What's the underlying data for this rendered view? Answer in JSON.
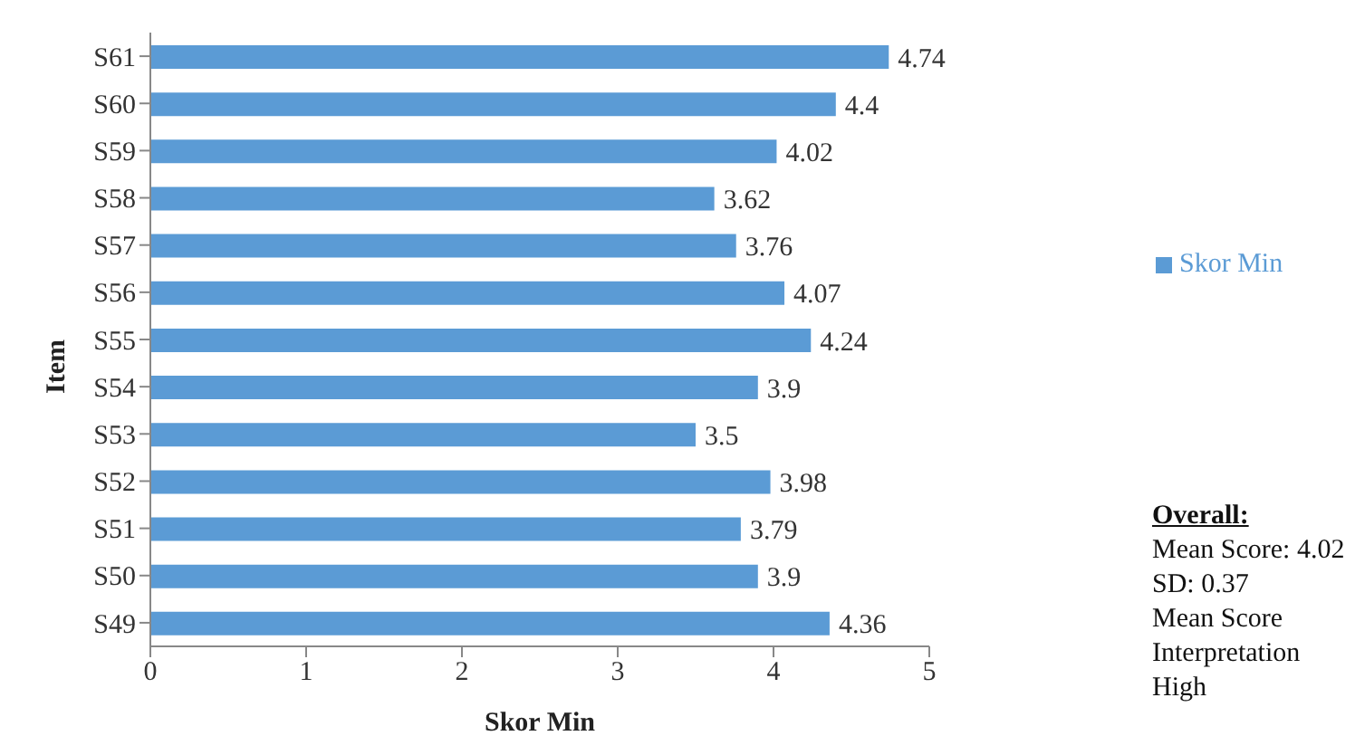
{
  "chart_data": {
    "type": "bar",
    "orientation": "horizontal",
    "xlabel": "Skor Min",
    "ylabel": "Item",
    "categories": [
      "S61",
      "S60",
      "S59",
      "S58",
      "S57",
      "S56",
      "S55",
      "S54",
      "S53",
      "S52",
      "S51",
      "S50",
      "S49"
    ],
    "series": [
      {
        "name": "Skor Min",
        "color": "#5b9bd5",
        "values": [
          4.74,
          4.4,
          4.02,
          3.62,
          3.76,
          4.07,
          4.24,
          3.9,
          3.5,
          3.98,
          3.79,
          3.9,
          4.36
        ]
      }
    ],
    "xlim": [
      0,
      5
    ],
    "xticks": [
      0,
      1,
      2,
      3,
      4,
      5
    ],
    "data_labels": true,
    "legend": "right",
    "grid": false,
    "annotations": [
      "Overall:",
      "Mean Score: 4.02",
      "SD: 0.37",
      "Mean Score Interpretation High"
    ]
  }
}
